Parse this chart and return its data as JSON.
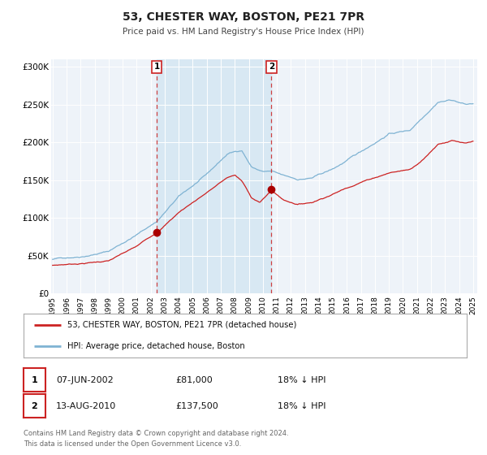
{
  "title": "53, CHESTER WAY, BOSTON, PE21 7PR",
  "subtitle": "Price paid vs. HM Land Registry's House Price Index (HPI)",
  "background_color": "#ffffff",
  "plot_bg_color": "#eef3f9",
  "shaded_region_color": "#d8e8f3",
  "grid_color": "#ffffff",
  "ylim": [
    0,
    310000
  ],
  "yticks": [
    0,
    50000,
    100000,
    150000,
    200000,
    250000,
    300000
  ],
  "ytick_labels": [
    "£0",
    "£50K",
    "£100K",
    "£150K",
    "£200K",
    "£250K",
    "£300K"
  ],
  "hpi_color": "#7fb3d3",
  "price_color": "#cc2222",
  "marker_color": "#aa0000",
  "purchase1_year": 2002.44,
  "purchase1_price": 81000,
  "purchase2_year": 2010.62,
  "purchase2_price": 137500,
  "shaded_start": 2002.44,
  "shaded_end": 2010.62,
  "legend_label1": "53, CHESTER WAY, BOSTON, PE21 7PR (detached house)",
  "legend_label2": "HPI: Average price, detached house, Boston",
  "annotation1_label": "1",
  "annotation2_label": "2",
  "annotation1_date": "07-JUN-2002",
  "annotation1_price": "£81,000",
  "annotation1_hpi": "18% ↓ HPI",
  "annotation2_date": "13-AUG-2010",
  "annotation2_price": "£137,500",
  "annotation2_hpi": "18% ↓ HPI",
  "footer1": "Contains HM Land Registry data © Crown copyright and database right 2024.",
  "footer2": "This data is licensed under the Open Government Licence v3.0.",
  "xtick_years": [
    1995,
    1996,
    1997,
    1998,
    1999,
    2000,
    2001,
    2002,
    2003,
    2004,
    2005,
    2006,
    2007,
    2008,
    2009,
    2010,
    2011,
    2012,
    2013,
    2014,
    2015,
    2016,
    2017,
    2018,
    2019,
    2020,
    2021,
    2022,
    2023,
    2024,
    2025
  ]
}
